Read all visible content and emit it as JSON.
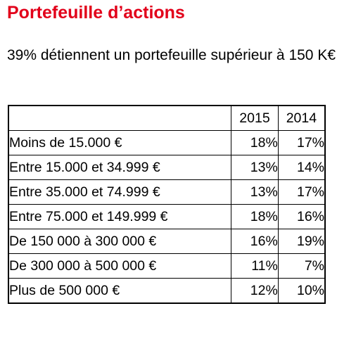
{
  "title": "Portefeuille d’actions",
  "subtitle": "39% détiennent un portefeuille supérieur à 150 K€",
  "table": {
    "corner": "",
    "columns": [
      "2015",
      "2014"
    ],
    "rows": [
      {
        "label": "Moins de 15.000 €",
        "v2015": "18%",
        "v2014": "17%"
      },
      {
        "label": "Entre 15.000 et 34.999 €",
        "v2015": "13%",
        "v2014": "14%"
      },
      {
        "label": "Entre 35.000 et 74.999 €",
        "v2015": "13%",
        "v2014": "17%"
      },
      {
        "label": "Entre 75.000 et 149.999 €",
        "v2015": "18%",
        "v2014": "16%"
      },
      {
        "label": "De 150 000 à 300 000 €",
        "v2015": "16%",
        "v2014": "19%"
      },
      {
        "label": "De 300 000 à 500 000 €",
        "v2015": "11%",
        "v2014": "7%"
      },
      {
        "label": "Plus de 500 000 €",
        "v2015": "12%",
        "v2014": "10%"
      }
    ]
  },
  "colors": {
    "title": "#e2001a",
    "text": "#000000",
    "border": "#000000",
    "background": "#ffffff"
  }
}
